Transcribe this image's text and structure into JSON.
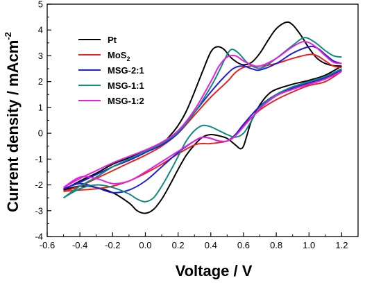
{
  "chart_data": {
    "type": "line",
    "xlabel": "Voltage / V",
    "ylabel_main": "Current density / mAcm",
    "ylabel_sup": "-2",
    "xlim": [
      -0.6,
      1.3
    ],
    "ylim": [
      -4,
      5
    ],
    "xticks": [
      "-0.6",
      "-0.4",
      "-0.2",
      "0.0",
      "0.2",
      "0.4",
      "0.6",
      "0.8",
      "1.0",
      "1.2"
    ],
    "yticks": [
      "-4",
      "-3",
      "-2",
      "-1",
      "0",
      "1",
      "2",
      "3",
      "4",
      "5"
    ],
    "legend_position": "top-left",
    "series": [
      {
        "name": "Pt",
        "color": "#000000",
        "forward": [
          [
            -0.5,
            -2.2
          ],
          [
            -0.4,
            -1.85
          ],
          [
            -0.3,
            -1.55
          ],
          [
            -0.2,
            -1.2
          ],
          [
            -0.1,
            -0.95
          ],
          [
            0.0,
            -0.7
          ],
          [
            0.1,
            -0.4
          ],
          [
            0.15,
            -0.1
          ],
          [
            0.2,
            0.3
          ],
          [
            0.25,
            0.85
          ],
          [
            0.3,
            1.6
          ],
          [
            0.35,
            2.4
          ],
          [
            0.4,
            3.15
          ],
          [
            0.44,
            3.35
          ],
          [
            0.48,
            3.25
          ],
          [
            0.52,
            2.95
          ],
          [
            0.56,
            2.75
          ],
          [
            0.6,
            2.65
          ],
          [
            0.65,
            2.75
          ],
          [
            0.7,
            3.1
          ],
          [
            0.75,
            3.6
          ],
          [
            0.8,
            4.05
          ],
          [
            0.86,
            4.3
          ],
          [
            0.9,
            4.2
          ],
          [
            0.95,
            3.8
          ],
          [
            1.0,
            3.3
          ],
          [
            1.05,
            2.9
          ],
          [
            1.1,
            2.7
          ],
          [
            1.15,
            2.62
          ],
          [
            1.2,
            2.6
          ]
        ],
        "reverse": [
          [
            1.2,
            2.6
          ],
          [
            1.1,
            2.25
          ],
          [
            1.0,
            2.05
          ],
          [
            0.9,
            1.9
          ],
          [
            0.8,
            1.7
          ],
          [
            0.75,
            1.5
          ],
          [
            0.7,
            1.1
          ],
          [
            0.65,
            0.5
          ],
          [
            0.62,
            -0.1
          ],
          [
            0.6,
            -0.5
          ],
          [
            0.58,
            -0.6
          ],
          [
            0.55,
            -0.45
          ],
          [
            0.5,
            -0.2
          ],
          [
            0.45,
            -0.1
          ],
          [
            0.4,
            -0.05
          ],
          [
            0.35,
            -0.15
          ],
          [
            0.3,
            -0.45
          ],
          [
            0.25,
            -0.85
          ],
          [
            0.2,
            -1.4
          ],
          [
            0.15,
            -2.0
          ],
          [
            0.1,
            -2.55
          ],
          [
            0.05,
            -2.95
          ],
          [
            0.0,
            -3.1
          ],
          [
            -0.05,
            -3.0
          ],
          [
            -0.1,
            -2.7
          ],
          [
            -0.2,
            -2.3
          ],
          [
            -0.3,
            -2.1
          ],
          [
            -0.4,
            -2.05
          ],
          [
            -0.5,
            -2.2
          ]
        ]
      },
      {
        "name": "MoS2",
        "color": "#e8231f",
        "forward": [
          [
            -0.5,
            -2.25
          ],
          [
            -0.4,
            -2.05
          ],
          [
            -0.3,
            -1.75
          ],
          [
            -0.2,
            -1.45
          ],
          [
            -0.1,
            -1.15
          ],
          [
            0.0,
            -0.85
          ],
          [
            0.1,
            -0.5
          ],
          [
            0.2,
            0.0
          ],
          [
            0.3,
            0.7
          ],
          [
            0.4,
            1.4
          ],
          [
            0.5,
            2.0
          ],
          [
            0.55,
            2.35
          ],
          [
            0.6,
            2.55
          ],
          [
            0.65,
            2.6
          ],
          [
            0.7,
            2.6
          ],
          [
            0.8,
            2.7
          ],
          [
            0.9,
            2.9
          ],
          [
            1.0,
            3.05
          ],
          [
            1.05,
            3.0
          ],
          [
            1.1,
            2.8
          ],
          [
            1.15,
            2.6
          ],
          [
            1.2,
            2.55
          ]
        ],
        "reverse": [
          [
            1.2,
            2.4
          ],
          [
            1.1,
            2.0
          ],
          [
            1.0,
            1.85
          ],
          [
            0.9,
            1.6
          ],
          [
            0.8,
            1.3
          ],
          [
            0.7,
            0.9
          ],
          [
            0.6,
            0.3
          ],
          [
            0.55,
            -0.1
          ],
          [
            0.5,
            -0.3
          ],
          [
            0.4,
            -0.4
          ],
          [
            0.35,
            -0.4
          ],
          [
            0.3,
            -0.45
          ],
          [
            0.2,
            -0.8
          ],
          [
            0.1,
            -1.2
          ],
          [
            0.0,
            -1.55
          ],
          [
            -0.1,
            -1.85
          ],
          [
            -0.2,
            -2.05
          ],
          [
            -0.3,
            -2.15
          ],
          [
            -0.4,
            -2.2
          ],
          [
            -0.5,
            -2.25
          ]
        ]
      },
      {
        "name": "MSG-2:1",
        "color": "#1f1fd6",
        "forward": [
          [
            -0.5,
            -2.15
          ],
          [
            -0.4,
            -1.9
          ],
          [
            -0.3,
            -1.6
          ],
          [
            -0.2,
            -1.3
          ],
          [
            -0.1,
            -1.05
          ],
          [
            0.0,
            -0.75
          ],
          [
            0.1,
            -0.45
          ],
          [
            0.2,
            0.0
          ],
          [
            0.3,
            0.8
          ],
          [
            0.4,
            1.6
          ],
          [
            0.5,
            2.3
          ],
          [
            0.55,
            2.55
          ],
          [
            0.6,
            2.6
          ],
          [
            0.65,
            2.5
          ],
          [
            0.7,
            2.45
          ],
          [
            0.8,
            2.7
          ],
          [
            0.9,
            3.1
          ],
          [
            1.0,
            3.35
          ],
          [
            1.05,
            3.3
          ],
          [
            1.1,
            3.05
          ],
          [
            1.15,
            2.8
          ],
          [
            1.2,
            2.7
          ]
        ],
        "reverse": [
          [
            1.2,
            2.45
          ],
          [
            1.1,
            2.15
          ],
          [
            1.0,
            1.95
          ],
          [
            0.9,
            1.75
          ],
          [
            0.8,
            1.5
          ],
          [
            0.7,
            1.05
          ],
          [
            0.6,
            0.35
          ],
          [
            0.55,
            -0.05
          ],
          [
            0.5,
            -0.3
          ],
          [
            0.45,
            -0.3
          ],
          [
            0.4,
            -0.2
          ],
          [
            0.35,
            -0.15
          ],
          [
            0.3,
            -0.3
          ],
          [
            0.2,
            -0.75
          ],
          [
            0.1,
            -1.3
          ],
          [
            0.0,
            -1.85
          ],
          [
            -0.1,
            -2.2
          ],
          [
            -0.2,
            -2.3
          ],
          [
            -0.3,
            -2.1
          ],
          [
            -0.4,
            -1.95
          ],
          [
            -0.5,
            -2.15
          ]
        ]
      },
      {
        "name": "MSG-1:1",
        "color": "#0f8a82",
        "forward": [
          [
            -0.5,
            -2.5
          ],
          [
            -0.4,
            -2.05
          ],
          [
            -0.3,
            -1.7
          ],
          [
            -0.2,
            -1.3
          ],
          [
            -0.1,
            -1.0
          ],
          [
            0.0,
            -0.7
          ],
          [
            0.1,
            -0.4
          ],
          [
            0.2,
            0.05
          ],
          [
            0.3,
            0.8
          ],
          [
            0.4,
            1.8
          ],
          [
            0.45,
            2.4
          ],
          [
            0.5,
            3.05
          ],
          [
            0.53,
            3.25
          ],
          [
            0.57,
            3.1
          ],
          [
            0.62,
            2.75
          ],
          [
            0.67,
            2.55
          ],
          [
            0.72,
            2.55
          ],
          [
            0.8,
            2.9
          ],
          [
            0.9,
            3.4
          ],
          [
            0.97,
            3.7
          ],
          [
            1.03,
            3.55
          ],
          [
            1.1,
            3.2
          ],
          [
            1.15,
            3.0
          ],
          [
            1.2,
            2.95
          ]
        ],
        "reverse": [
          [
            1.2,
            2.5
          ],
          [
            1.1,
            2.2
          ],
          [
            1.0,
            2.0
          ],
          [
            0.9,
            1.8
          ],
          [
            0.8,
            1.5
          ],
          [
            0.7,
            1.0
          ],
          [
            0.65,
            0.5
          ],
          [
            0.6,
            0.0
          ],
          [
            0.55,
            -0.15
          ],
          [
            0.5,
            -0.05
          ],
          [
            0.45,
            0.1
          ],
          [
            0.4,
            0.25
          ],
          [
            0.35,
            0.3
          ],
          [
            0.3,
            0.1
          ],
          [
            0.25,
            -0.3
          ],
          [
            0.2,
            -0.9
          ],
          [
            0.15,
            -1.5
          ],
          [
            0.1,
            -2.05
          ],
          [
            0.05,
            -2.5
          ],
          [
            0.0,
            -2.65
          ],
          [
            -0.05,
            -2.55
          ],
          [
            -0.1,
            -2.35
          ],
          [
            -0.2,
            -2.1
          ],
          [
            -0.3,
            -2.0
          ],
          [
            -0.4,
            -2.15
          ],
          [
            -0.5,
            -2.5
          ]
        ]
      },
      {
        "name": "MSG-1:2",
        "color": "#e81fe0",
        "forward": [
          [
            -0.5,
            -2.1
          ],
          [
            -0.4,
            -1.75
          ],
          [
            -0.3,
            -1.45
          ],
          [
            -0.2,
            -1.15
          ],
          [
            -0.1,
            -0.9
          ],
          [
            0.0,
            -0.65
          ],
          [
            0.1,
            -0.35
          ],
          [
            0.2,
            0.1
          ],
          [
            0.3,
            0.9
          ],
          [
            0.4,
            2.0
          ],
          [
            0.45,
            2.6
          ],
          [
            0.5,
            2.95
          ],
          [
            0.55,
            3.0
          ],
          [
            0.6,
            2.8
          ],
          [
            0.65,
            2.65
          ],
          [
            0.7,
            2.6
          ],
          [
            0.8,
            2.9
          ],
          [
            0.9,
            3.35
          ],
          [
            0.97,
            3.55
          ],
          [
            1.03,
            3.4
          ],
          [
            1.1,
            3.0
          ],
          [
            1.15,
            2.75
          ],
          [
            1.2,
            2.7
          ]
        ],
        "reverse": [
          [
            1.2,
            2.4
          ],
          [
            1.1,
            2.1
          ],
          [
            1.0,
            1.9
          ],
          [
            0.9,
            1.7
          ],
          [
            0.8,
            1.45
          ],
          [
            0.7,
            0.95
          ],
          [
            0.6,
            0.25
          ],
          [
            0.55,
            -0.1
          ],
          [
            0.5,
            -0.3
          ],
          [
            0.45,
            -0.3
          ],
          [
            0.4,
            -0.2
          ],
          [
            0.35,
            -0.15
          ],
          [
            0.3,
            -0.3
          ],
          [
            0.2,
            -0.7
          ],
          [
            0.1,
            -1.1
          ],
          [
            0.0,
            -1.5
          ],
          [
            -0.1,
            -1.85
          ],
          [
            -0.2,
            -1.95
          ],
          [
            -0.3,
            -1.75
          ],
          [
            -0.4,
            -1.7
          ],
          [
            -0.5,
            -2.1
          ]
        ]
      }
    ]
  }
}
